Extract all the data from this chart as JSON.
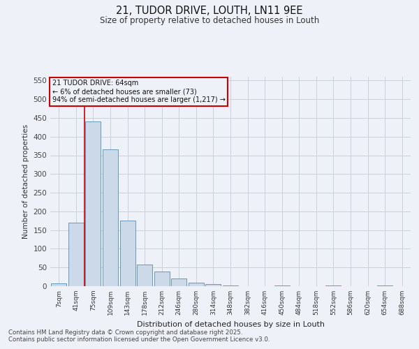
{
  "title1": "21, TUDOR DRIVE, LOUTH, LN11 9EE",
  "title2": "Size of property relative to detached houses in Louth",
  "xlabel": "Distribution of detached houses by size in Louth",
  "ylabel": "Number of detached properties",
  "footnote1": "Contains HM Land Registry data © Crown copyright and database right 2025.",
  "footnote2": "Contains public sector information licensed under the Open Government Licence v3.0.",
  "annotation_line1": "21 TUDOR DRIVE: 64sqm",
  "annotation_line2": "← 6% of detached houses are smaller (73)",
  "annotation_line3": "94% of semi-detached houses are larger (1,217) →",
  "bar_color": "#ccd9e8",
  "bar_edge_color": "#6699bb",
  "grid_color": "#c8d0dc",
  "red_line_color": "#cc0000",
  "categories": [
    "7sqm",
    "41sqm",
    "75sqm",
    "109sqm",
    "143sqm",
    "178sqm",
    "212sqm",
    "246sqm",
    "280sqm",
    "314sqm",
    "348sqm",
    "382sqm",
    "416sqm",
    "450sqm",
    "484sqm",
    "518sqm",
    "552sqm",
    "586sqm",
    "620sqm",
    "654sqm",
    "688sqm"
  ],
  "values": [
    8,
    170,
    440,
    365,
    175,
    57,
    40,
    20,
    10,
    5,
    2,
    0,
    0,
    1,
    0,
    0,
    1,
    0,
    0,
    1,
    0
  ],
  "ylim": [
    0,
    560
  ],
  "yticks": [
    0,
    50,
    100,
    150,
    200,
    250,
    300,
    350,
    400,
    450,
    500,
    550
  ],
  "red_line_x": 1.5,
  "background_color": "#eef2f8"
}
